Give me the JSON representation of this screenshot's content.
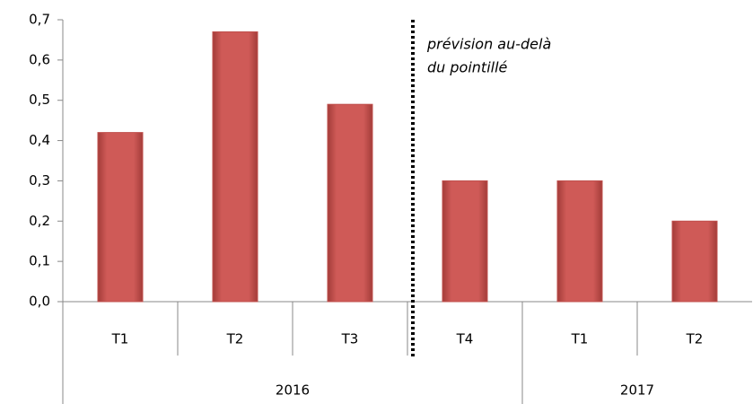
{
  "chart_data": {
    "type": "bar",
    "groups": [
      {
        "label": "2016",
        "categories": [
          "T1",
          "T2",
          "T3",
          "T4"
        ]
      },
      {
        "label": "2017",
        "categories": [
          "T1",
          "T2"
        ]
      }
    ],
    "values": [
      0.42,
      0.67,
      0.49,
      0.3,
      0.3,
      0.2
    ],
    "color": "#c0504d",
    "ylim": [
      0,
      0.7
    ],
    "yticks": [
      {
        "value": 0,
        "label": "0,0"
      },
      {
        "value": 0.1,
        "label": "0,1"
      },
      {
        "value": 0.2,
        "label": "0,2"
      },
      {
        "value": 0.3,
        "label": "0,3"
      },
      {
        "value": 0.4,
        "label": "0,4"
      },
      {
        "value": 0.5,
        "label": "0,5"
      },
      {
        "value": 0.6,
        "label": "0,6"
      },
      {
        "value": 0.7,
        "label": "0,7"
      }
    ],
    "grid": false,
    "annotation": [
      "prévision au-delà",
      "du pointillé"
    ]
  }
}
